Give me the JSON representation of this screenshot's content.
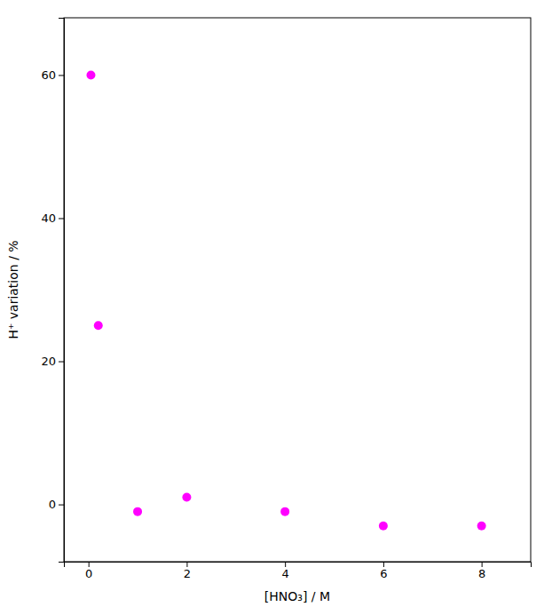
{
  "chart_data": {
    "type": "scatter",
    "x": [
      0.05,
      0.2,
      1,
      2,
      4,
      6,
      8
    ],
    "y": [
      60,
      25,
      -1,
      1,
      -1,
      -3,
      -3
    ],
    "color": "#FF00FF",
    "xlabel": "[HNO₃] / M",
    "ylabel": "H⁺ variation / %",
    "xlim": [
      -0.5,
      9.0
    ],
    "ylim": [
      -8,
      68
    ],
    "xticks": [
      0,
      2,
      4,
      6,
      8
    ],
    "yticks": [
      0,
      20,
      40,
      60
    ],
    "grid": false
  }
}
